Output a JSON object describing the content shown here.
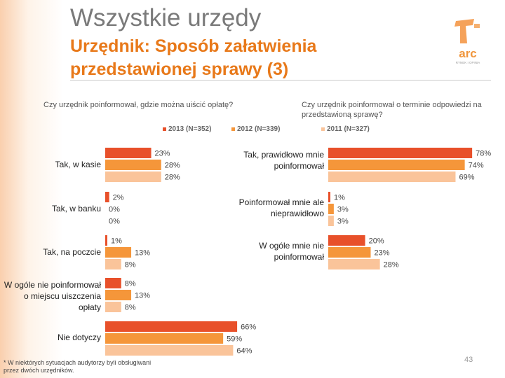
{
  "title": "Wszystkie urzędy",
  "subtitle": "Urzędnik: Sposób załatwienia przedstawionej sprawy (3)",
  "logo": {
    "text_top": "arc",
    "text_bottom": "RYNEK I OPINIA"
  },
  "colors": {
    "s2013": "#e8502a",
    "s2012": "#f5963a",
    "s2011": "#fac49a",
    "accent": "#e8791a"
  },
  "footnote": "* W niektórych sytuacjach audytorzy byli obsługiwani przez dwóch urzędników.",
  "page_number": "43",
  "chart_data": [
    {
      "type": "bar",
      "orientation": "horizontal",
      "title": "Czy urzędnik poinformował, gdzie można uiścić opłatę?",
      "categories": [
        "Tak, w kasie",
        "Tak, w banku",
        "Tak, na poczcie",
        "W ogóle nie poinformował o miejscu uiszczenia opłaty",
        "Nie dotyczy"
      ],
      "series": [
        {
          "name": "2013 (N=352)",
          "values": [
            23,
            2,
            1,
            8,
            66
          ],
          "labels": [
            "23%",
            "2%",
            "1%",
            "8%",
            "66%"
          ]
        },
        {
          "name": "2012 (N=339)",
          "values": [
            28,
            0,
            13,
            13,
            59
          ],
          "labels": [
            "28%",
            "0%",
            "13%",
            "13%",
            "59%"
          ]
        },
        {
          "name": "2011 (N=327)",
          "values": [
            28,
            0,
            8,
            8,
            64
          ],
          "labels": [
            "28%",
            "0%",
            "8%",
            "8%",
            "64%"
          ]
        }
      ]
    },
    {
      "type": "bar",
      "orientation": "horizontal",
      "title": "Czy urzędnik poinformował o terminie odpowiedzi na przedstawioną sprawę?",
      "categories": [
        "Tak, prawidłowo mnie poinformował",
        "Poinformował mnie ale nieprawidłowo",
        "W ogóle mnie nie poinformował"
      ],
      "series": [
        {
          "name": "2013 (N=352)",
          "values": [
            78,
            1,
            20
          ],
          "labels": [
            "78%",
            "1%",
            "20%"
          ]
        },
        {
          "name": "2012 (N=339)",
          "values": [
            74,
            3,
            23
          ],
          "labels": [
            "74%",
            "3%",
            "23%"
          ]
        },
        {
          "name": "2011 (N=327)",
          "values": [
            69,
            3,
            28
          ],
          "labels": [
            "69%",
            "3%",
            "28%"
          ]
        }
      ]
    }
  ]
}
